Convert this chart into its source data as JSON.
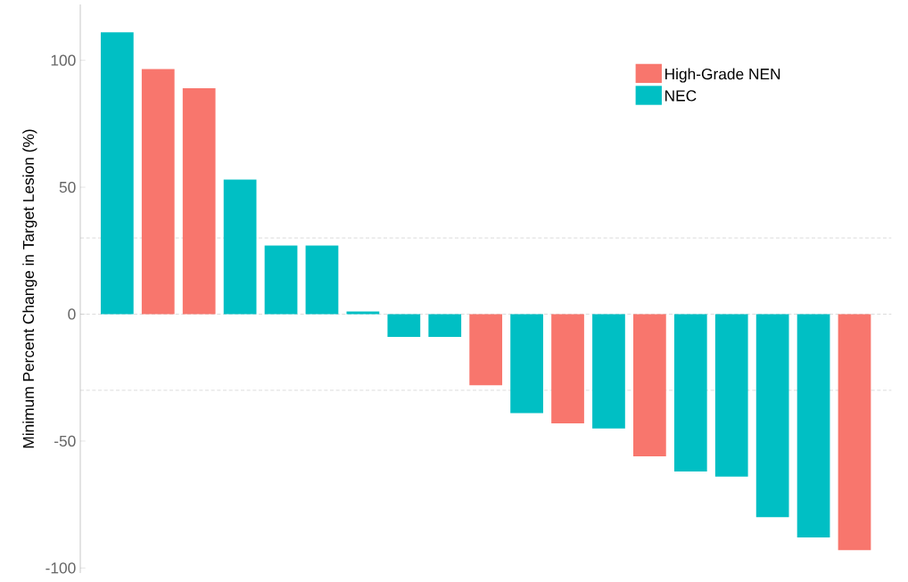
{
  "chart_data": {
    "type": "bar",
    "ylabel": "Minimum Percent Change in Target Lesion (%)",
    "categories": [
      null,
      null,
      null,
      null,
      null,
      null,
      null,
      null,
      null,
      null,
      null,
      null,
      null,
      null,
      null,
      null,
      null,
      null,
      null
    ],
    "series": [
      {
        "name": "High-Grade NEN",
        "color": "#f8766d",
        "values": [
          null,
          96.5,
          89,
          null,
          null,
          null,
          null,
          null,
          null,
          -28,
          null,
          -43,
          null,
          -56,
          null,
          null,
          null,
          null,
          -93
        ]
      },
      {
        "name": "NEC",
        "color": "#00bfc4",
        "values": [
          111,
          null,
          null,
          53,
          27,
          27,
          1,
          -9,
          -9,
          null,
          -39,
          null,
          -45,
          null,
          -62,
          -64,
          -80,
          -88,
          null
        ]
      }
    ],
    "ylim": [
      -102,
      122
    ],
    "yticks": [
      -100,
      -50,
      0,
      50,
      100
    ],
    "tick_labels": "y",
    "grid": false,
    "legend": "top right",
    "ref_lines": [
      {
        "axis": "y",
        "value": 30,
        "color": "#bdbdbd",
        "line_style": "dashed"
      },
      {
        "axis": "y",
        "value": 0,
        "color": "#bdbdbd",
        "line_style": "dashed"
      },
      {
        "axis": "y",
        "value": -30,
        "color": "#bdbdbd",
        "line_style": "dashed"
      }
    ]
  }
}
